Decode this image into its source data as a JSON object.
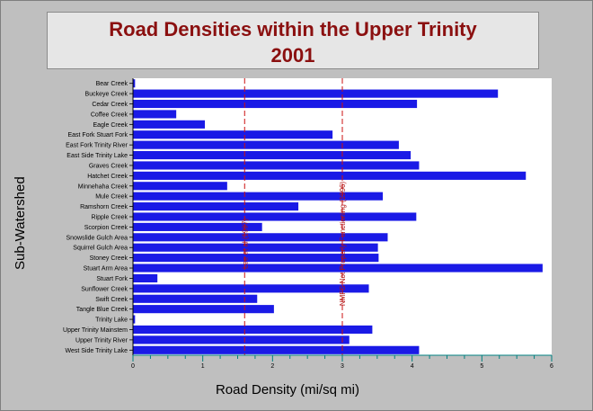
{
  "chart_data": {
    "type": "bar",
    "orientation": "horizontal",
    "title": "Road Densities within the Upper Trinity",
    "subtitle": "2001",
    "xlabel": "Road Density (mi/sq mi)",
    "ylabel": "Sub-Watershed",
    "xlim": [
      0,
      6
    ],
    "xticks": [
      "0",
      "1",
      "2",
      "3",
      "4",
      "5",
      "6"
    ],
    "grid": false,
    "bar_color": "#1a1ae6",
    "categories": [
      "Bear Creek",
      "Buckeye Creek",
      "Cedar Creek",
      "Coffee Creek",
      "Eagle Creek",
      "East Fork Stuart Fork",
      "East Fork Trinity River",
      "East Side Trinity Lake",
      "Graves Creek",
      "Hatchet Creek",
      "Minnehaha Creek",
      "Mule Creek",
      "Ramshorn Creek",
      "Ripple Creek",
      "Scorpion Creek",
      "Snowslide Gulch Area",
      "Squirrel Gulch Area",
      "Stoney Creek",
      "Stuart Arm Area",
      "Stuart Fork",
      "Sunflower Creek",
      "Swift Creek",
      "Tangle Blue Creek",
      "Trinity Lake",
      "Upper Trinity Mainstem",
      "Upper Trinity River",
      "West Side Trinity Lake"
    ],
    "values": [
      0.03,
      5.23,
      4.07,
      0.62,
      1.03,
      2.86,
      3.81,
      3.98,
      4.1,
      5.63,
      1.35,
      3.58,
      2.37,
      4.06,
      1.85,
      3.65,
      3.51,
      3.52,
      5.87,
      0.35,
      3.38,
      1.78,
      2.02,
      0.03,
      3.43,
      3.1,
      4.1
    ],
    "reference_lines": [
      {
        "value": 1.6,
        "label": "Lee et al (1997)",
        "color": "#cc1010"
      },
      {
        "value": 3.0,
        "label": "NMFS Not Properly Functioning (1996)",
        "color": "#cc1010"
      }
    ]
  }
}
